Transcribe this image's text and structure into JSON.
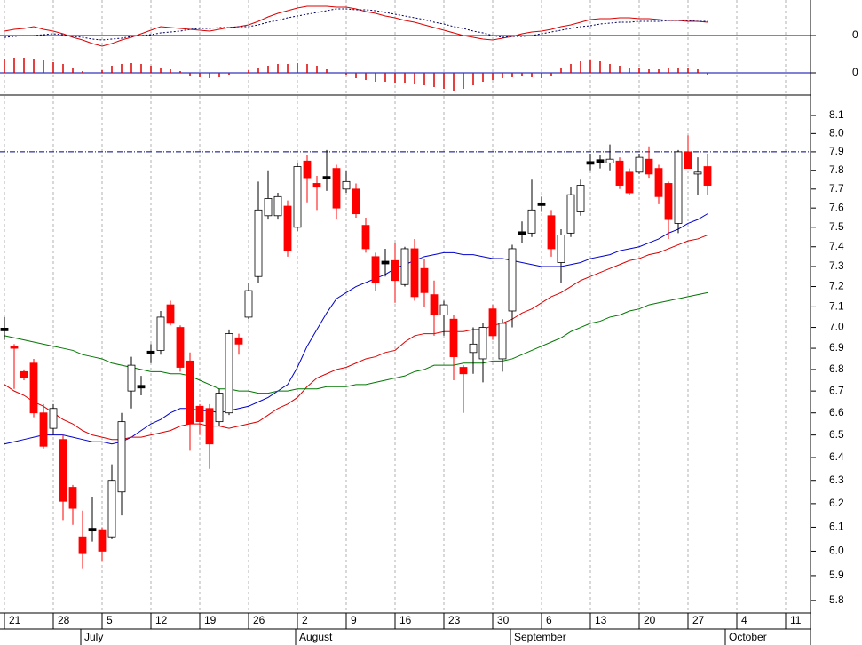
{
  "chart_data": [
    {
      "type": "line",
      "ylim": [
        -0.15,
        0.4
      ],
      "yticks": [
        0
      ],
      "series": [
        {
          "name": "MACD",
          "color": "#dd0000",
          "dash": false,
          "values": [
            0.05,
            0.07,
            0.08,
            0.1,
            0.07,
            0.05,
            0.02,
            -0.02,
            -0.05,
            -0.09,
            -0.12,
            -0.09,
            -0.05,
            -0.02,
            0.02,
            0.06,
            0.1,
            0.09,
            0.08,
            0.07,
            0.06,
            0.05,
            0.07,
            0.09,
            0.1,
            0.12,
            0.16,
            0.21,
            0.25,
            0.28,
            0.31,
            0.33,
            0.33,
            0.33,
            0.32,
            0.32,
            0.3,
            0.27,
            0.25,
            0.22,
            0.2,
            0.17,
            0.15,
            0.12,
            0.09,
            0.06,
            0.03,
            0.0,
            -0.02,
            -0.04,
            -0.05,
            -0.03,
            -0.01,
            0.02,
            0.04,
            0.05,
            0.07,
            0.1,
            0.12,
            0.15,
            0.18,
            0.19,
            0.19,
            0.2,
            0.2,
            0.19,
            0.19,
            0.18,
            0.17,
            0.17,
            0.16,
            0.16,
            0.15,
            null,
            null,
            null,
            null,
            null,
            null,
            null,
            null,
            null,
            null,
            null
          ]
        },
        {
          "name": "Signal",
          "color": "#000066",
          "dash": true,
          "values": [
            -0.02,
            -0.01,
            0.0,
            0.0,
            0.01,
            0.02,
            0.01,
            -0.01,
            -0.02,
            -0.04,
            -0.05,
            -0.04,
            -0.03,
            -0.01,
            0.0,
            0.01,
            0.03,
            0.04,
            0.05,
            0.07,
            0.08,
            0.08,
            0.09,
            0.09,
            0.1,
            0.1,
            0.12,
            0.15,
            0.17,
            0.2,
            0.22,
            0.24,
            0.26,
            0.28,
            0.3,
            0.3,
            0.29,
            0.29,
            0.28,
            0.26,
            0.24,
            0.22,
            0.2,
            0.18,
            0.15,
            0.13,
            0.1,
            0.08,
            0.05,
            0.03,
            0.0,
            -0.02,
            -0.01,
            -0.01,
            0.0,
            0.02,
            0.04,
            0.06,
            0.08,
            0.1,
            0.11,
            0.13,
            0.14,
            0.15,
            0.15,
            0.16,
            0.16,
            0.16,
            0.17,
            0.17,
            0.17,
            0.16,
            0.16,
            null,
            null,
            null,
            null,
            null,
            null,
            null,
            null,
            null,
            null,
            null
          ]
        }
      ]
    },
    {
      "type": "bar",
      "ylim": [
        -0.23,
        0.22
      ],
      "yticks": [
        0
      ],
      "color": "#dd0000",
      "values": [
        0.16,
        0.17,
        0.17,
        0.16,
        0.14,
        0.12,
        0.1,
        0.05,
        0.02,
        0.0,
        0.03,
        0.08,
        0.1,
        0.11,
        0.1,
        0.08,
        0.05,
        0.04,
        0.02,
        -0.04,
        -0.05,
        -0.06,
        -0.05,
        -0.02,
        0.0,
        0.03,
        0.06,
        0.08,
        0.1,
        0.1,
        0.11,
        0.1,
        0.08,
        0.04,
        0.0,
        -0.02,
        -0.06,
        -0.08,
        -0.1,
        -0.1,
        -0.11,
        -0.11,
        -0.12,
        -0.14,
        -0.16,
        -0.18,
        -0.2,
        -0.18,
        -0.14,
        -0.1,
        -0.08,
        -0.06,
        -0.05,
        -0.04,
        -0.05,
        -0.06,
        -0.03,
        0.06,
        0.1,
        0.13,
        0.14,
        0.13,
        0.1,
        0.08,
        0.06,
        0.06,
        0.04,
        0.04,
        0.05,
        0.06,
        0.06,
        0.04,
        -0.02,
        null,
        null,
        null,
        null,
        null,
        null,
        null,
        null,
        null,
        null,
        null
      ]
    },
    {
      "type": "candlestick",
      "log_scale": true,
      "ylim": [
        5.75,
        8.2
      ],
      "yticks": [
        5.8,
        5.9,
        {
          "value": 6,
          "label": "6.0"
        },
        6.1,
        6.2,
        6.3,
        6.4,
        6.5,
        6.6,
        6.7,
        6.8,
        6.9,
        {
          "value": 7,
          "label": "7.0"
        },
        7.1,
        7.2,
        7.3,
        7.4,
        7.5,
        7.6,
        7.7,
        7.8,
        7.9,
        {
          "value": 8,
          "label": "8.0"
        },
        8.1
      ],
      "reference_lines": [
        7.9
      ],
      "x_grid": true,
      "up_color": "#ffffff",
      "down_color": "#ff0000",
      "flat_color": "#000000",
      "categories": [
        "21",
        null,
        null,
        null,
        null,
        "28",
        null,
        null,
        null,
        null,
        "5",
        null,
        null,
        null,
        null,
        "12",
        null,
        null,
        null,
        null,
        "19",
        null,
        null,
        null,
        null,
        "26",
        null,
        null,
        null,
        null,
        "2",
        null,
        null,
        null,
        null,
        "9",
        null,
        null,
        null,
        null,
        "16",
        null,
        null,
        null,
        null,
        "23",
        null,
        null,
        null,
        null,
        "30",
        null,
        null,
        null,
        null,
        "6",
        null,
        null,
        null,
        null,
        "13",
        null,
        null,
        null,
        null,
        "20",
        null,
        null,
        null,
        null,
        "27",
        null,
        null,
        null,
        null,
        "4",
        null,
        null,
        null,
        null,
        "11",
        null,
        null,
        null
      ],
      "months": [
        null,
        null,
        null,
        null,
        null,
        null,
        null,
        null,
        "July",
        null,
        null,
        null,
        null,
        null,
        null,
        null,
        null,
        null,
        null,
        null,
        null,
        null,
        null,
        null,
        null,
        null,
        null,
        null,
        null,
        null,
        "August",
        null,
        null,
        null,
        null,
        null,
        null,
        null,
        null,
        null,
        null,
        null,
        null,
        null,
        null,
        null,
        null,
        null,
        null,
        null,
        null,
        null,
        "September",
        null,
        null,
        null,
        null,
        null,
        null,
        null,
        null,
        null,
        null,
        null,
        null,
        null,
        null,
        null,
        null,
        null,
        null,
        null,
        null,
        null,
        "October",
        null,
        null,
        null,
        null,
        null,
        null,
        null,
        null,
        null
      ],
      "open": [
        6.99,
        6.91,
        6.79,
        6.83,
        6.6,
        6.53,
        6.48,
        6.27,
        6.06,
        6.09,
        6.09,
        6.06,
        6.25,
        6.7,
        6.72,
        6.88,
        6.89,
        7.11,
        7.0,
        6.84,
        6.63,
        6.62,
        6.56,
        6.6,
        6.95,
        7.05,
        7.25,
        7.56,
        7.56,
        7.61,
        7.5,
        7.85,
        7.73,
        7.76,
        7.81,
        7.7,
        7.7,
        7.51,
        7.35,
        7.32,
        7.33,
        7.21,
        7.39,
        7.29,
        7.16,
        7.06,
        7.04,
        6.81,
        6.88,
        6.85,
        7.09,
        6.85,
        7.08,
        7.47,
        7.47,
        7.62,
        7.56,
        7.32,
        7.47,
        7.58,
        7.84,
        7.85,
        7.84,
        7.85,
        7.79,
        7.79,
        7.86,
        7.81,
        7.73,
        7.52,
        7.9,
        7.78,
        7.82,
        null,
        null,
        null,
        null,
        null,
        null,
        null,
        null,
        null,
        null,
        null
      ],
      "high": [
        7.05,
        6.92,
        6.8,
        6.85,
        6.64,
        6.64,
        6.5,
        6.28,
        6.17,
        6.23,
        6.1,
        6.37,
        6.6,
        6.86,
        6.77,
        6.92,
        7.08,
        7.13,
        7.01,
        6.88,
        6.64,
        6.64,
        6.71,
        6.99,
        6.97,
        7.22,
        7.74,
        7.8,
        7.68,
        7.64,
        7.84,
        7.88,
        7.77,
        7.91,
        7.83,
        7.8,
        7.73,
        7.55,
        7.37,
        7.39,
        7.42,
        7.4,
        7.44,
        7.34,
        7.23,
        7.13,
        7.06,
        6.82,
        7.0,
        7.02,
        7.11,
        7.04,
        7.41,
        7.53,
        7.75,
        7.66,
        7.59,
        7.49,
        7.71,
        7.75,
        7.89,
        7.88,
        7.94,
        7.87,
        7.81,
        7.89,
        7.93,
        7.83,
        7.74,
        7.91,
        7.99,
        7.87,
        7.89,
        null,
        null,
        null,
        null,
        null,
        null,
        null,
        null,
        null,
        null,
        null
      ],
      "low": [
        6.94,
        6.71,
        6.75,
        6.58,
        6.44,
        6.5,
        6.13,
        6.11,
        5.93,
        6.04,
        5.96,
        6.05,
        6.15,
        6.62,
        6.68,
        6.83,
        6.87,
        7.01,
        6.79,
        6.43,
        6.5,
        6.35,
        6.54,
        6.59,
        6.87,
        7.04,
        7.22,
        7.54,
        7.54,
        7.35,
        7.48,
        7.63,
        7.59,
        7.69,
        7.54,
        7.68,
        7.55,
        7.37,
        7.18,
        7.25,
        7.12,
        7.2,
        7.13,
        7.1,
        6.96,
        6.96,
        6.75,
        6.6,
        6.78,
        6.74,
        6.94,
        6.79,
        7.0,
        7.42,
        7.45,
        7.58,
        7.35,
        7.22,
        7.45,
        7.56,
        7.8,
        7.81,
        7.8,
        7.7,
        7.67,
        7.78,
        7.76,
        7.62,
        7.44,
        7.47,
        7.81,
        7.67,
        7.67,
        null,
        null,
        null,
        null,
        null,
        null,
        null,
        null,
        null,
        null,
        null
      ],
      "close": [
        6.99,
        6.9,
        6.76,
        6.6,
        6.45,
        6.62,
        6.21,
        6.18,
        5.99,
        6.09,
        6.0,
        6.3,
        6.56,
        6.82,
        6.72,
        6.88,
        7.05,
        7.02,
        6.81,
        6.55,
        6.56,
        6.46,
        6.69,
        6.97,
        6.92,
        7.18,
        7.59,
        7.65,
        7.66,
        7.38,
        7.82,
        7.76,
        7.71,
        7.76,
        7.6,
        7.74,
        7.57,
        7.39,
        7.22,
        7.32,
        7.23,
        7.39,
        7.15,
        7.17,
        7.06,
        7.11,
        6.86,
        6.78,
        6.92,
        7.0,
        6.96,
        7.02,
        7.39,
        7.47,
        7.59,
        7.62,
        7.39,
        7.46,
        7.67,
        7.72,
        7.84,
        7.85,
        7.86,
        7.72,
        7.68,
        7.87,
        7.78,
        7.66,
        7.54,
        7.9,
        7.81,
        7.79,
        7.72,
        null,
        null,
        null,
        null,
        null,
        null,
        null,
        null,
        null,
        null,
        null
      ],
      "series": [
        {
          "name": "MA10",
          "color": "#0000cc",
          "values": [
            6.46,
            6.47,
            6.48,
            6.49,
            6.5,
            6.5,
            6.5,
            6.49,
            6.48,
            6.47,
            6.47,
            6.46,
            6.47,
            6.49,
            6.52,
            6.55,
            6.57,
            6.6,
            6.62,
            6.62,
            6.61,
            6.61,
            6.6,
            6.61,
            6.62,
            6.63,
            6.65,
            6.67,
            6.7,
            6.73,
            6.81,
            6.91,
            6.99,
            7.07,
            7.14,
            7.17,
            7.2,
            7.22,
            7.24,
            7.26,
            7.29,
            7.31,
            7.33,
            7.35,
            7.36,
            7.37,
            7.37,
            7.36,
            7.36,
            7.35,
            7.34,
            7.34,
            7.33,
            7.32,
            7.31,
            7.3,
            7.3,
            7.3,
            7.31,
            7.32,
            7.34,
            7.35,
            7.36,
            7.38,
            7.39,
            7.4,
            7.42,
            7.44,
            7.47,
            7.49,
            7.52,
            7.54,
            7.57,
            null,
            null,
            null,
            null,
            null,
            null,
            null,
            null,
            null,
            null,
            null
          ]
        },
        {
          "name": "MA20",
          "color": "#dd0000",
          "values": [
            6.73,
            6.7,
            6.68,
            6.65,
            6.63,
            6.6,
            6.57,
            6.55,
            6.52,
            6.5,
            6.49,
            6.48,
            6.48,
            6.49,
            6.49,
            6.5,
            6.51,
            6.52,
            6.54,
            6.55,
            6.55,
            6.54,
            6.54,
            6.53,
            6.54,
            6.55,
            6.56,
            6.59,
            6.62,
            6.64,
            6.67,
            6.72,
            6.76,
            6.78,
            6.8,
            6.81,
            6.83,
            6.85,
            6.86,
            6.88,
            6.89,
            6.93,
            6.96,
            6.97,
            6.97,
            6.98,
            6.98,
            6.98,
            6.99,
            6.99,
            7.01,
            7.02,
            7.04,
            7.07,
            7.09,
            7.12,
            7.15,
            7.17,
            7.2,
            7.23,
            7.25,
            7.27,
            7.29,
            7.31,
            7.33,
            7.34,
            7.36,
            7.37,
            7.39,
            7.41,
            7.43,
            7.44,
            7.46,
            null,
            null,
            null,
            null,
            null,
            null,
            null,
            null,
            null,
            null,
            null
          ]
        },
        {
          "name": "MA50",
          "color": "#007700",
          "values": [
            6.96,
            6.95,
            6.94,
            6.93,
            6.92,
            6.91,
            6.9,
            6.89,
            6.87,
            6.86,
            6.85,
            6.83,
            6.82,
            6.81,
            6.8,
            6.79,
            6.79,
            6.78,
            6.78,
            6.77,
            6.75,
            6.73,
            6.71,
            6.71,
            6.7,
            6.7,
            6.69,
            6.69,
            6.7,
            6.7,
            6.71,
            6.71,
            6.71,
            6.72,
            6.72,
            6.72,
            6.73,
            6.73,
            6.74,
            6.75,
            6.76,
            6.77,
            6.79,
            6.8,
            6.82,
            6.82,
            6.82,
            6.83,
            6.83,
            6.83,
            6.84,
            6.84,
            6.85,
            6.87,
            6.89,
            6.91,
            6.93,
            6.95,
            6.98,
            7.0,
            7.02,
            7.03,
            7.05,
            7.06,
            7.08,
            7.09,
            7.11,
            7.12,
            7.13,
            7.14,
            7.15,
            7.16,
            7.17,
            null,
            null,
            null,
            null,
            null,
            null,
            null,
            null,
            null,
            null,
            null
          ]
        }
      ]
    }
  ]
}
